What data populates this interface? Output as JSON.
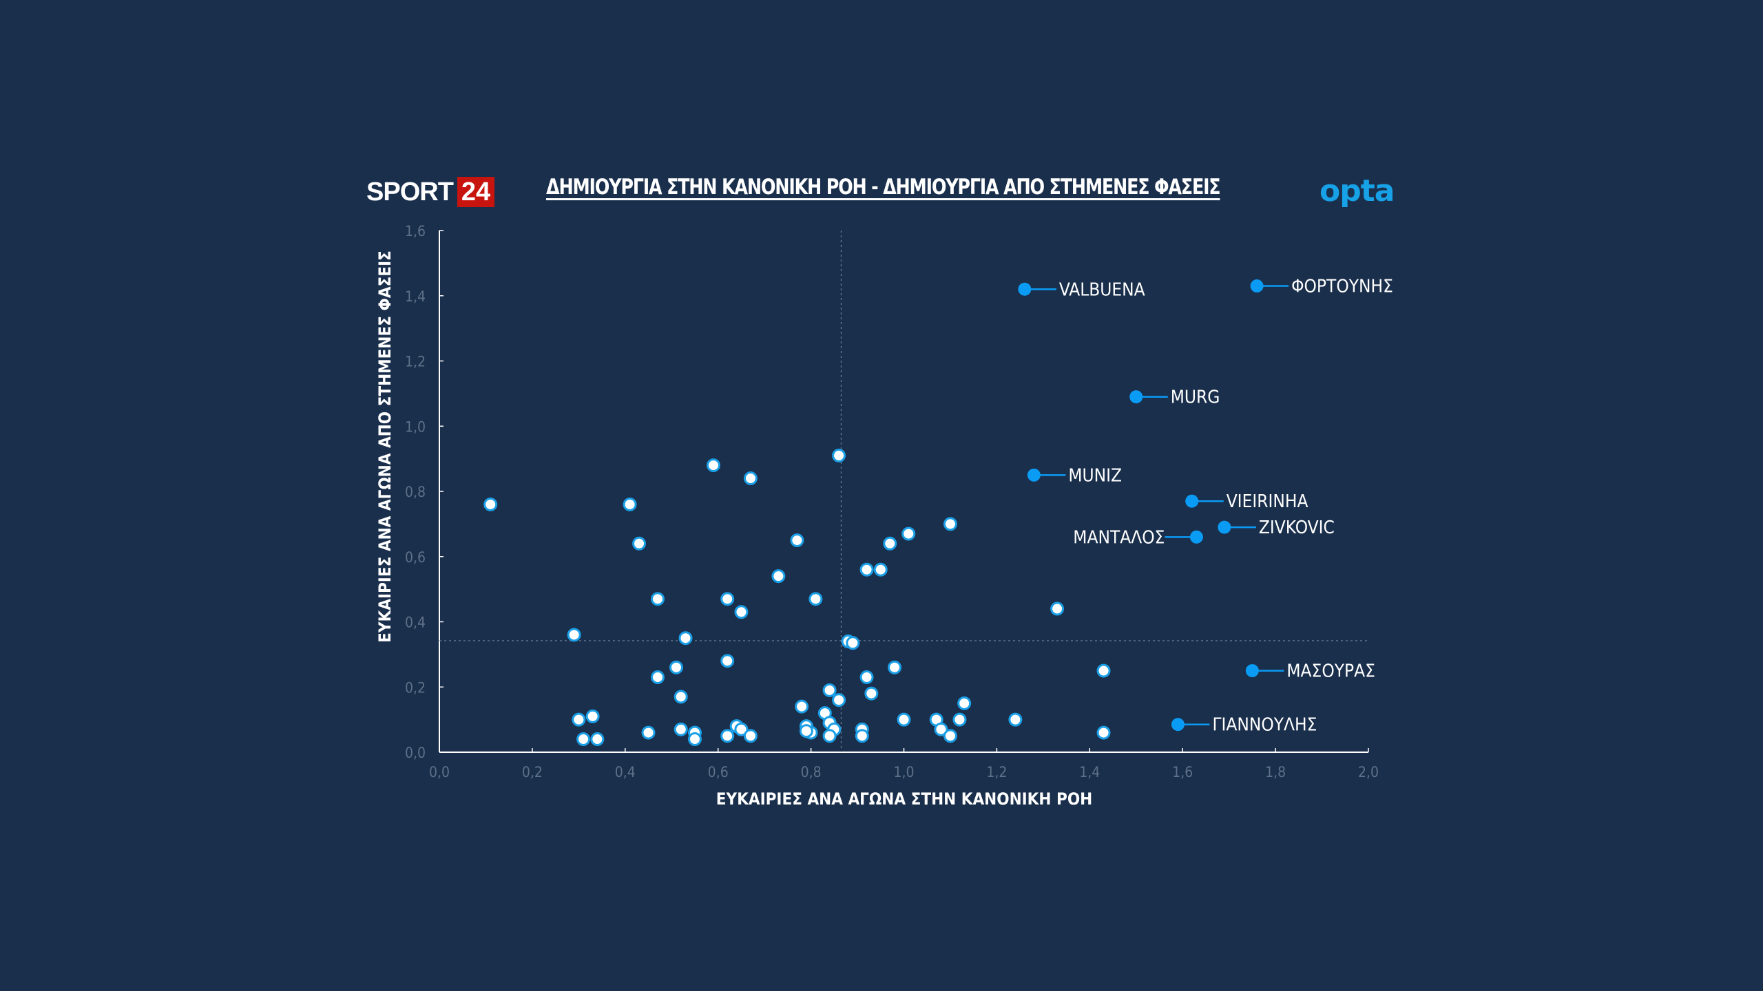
{
  "header": {
    "brand_word": "SPORT",
    "brand_number": "24",
    "title": "ΔΗΜΙΟΥΡΓΙΑ ΣΤΗΝ ΚΑΝΟΝΙΚΗ ΡΟΗ - ΔΗΜΙΟΥΡΓΙΑ ΑΠΟ ΣΤΗΜΕΝΕΣ ΦΑΣΕΙΣ",
    "provider": "opta"
  },
  "colors": {
    "background": "#1a2f4c",
    "highlight_point": "#0a9cf5",
    "point_fill": "#ffffff",
    "point_stroke": "#1a9fe6",
    "brand_red": "#c8140f",
    "opta_blue": "#17a2e8",
    "tick_text": "#5f7089"
  },
  "chart_data": {
    "type": "scatter",
    "title": "ΔΗΜΙΟΥΡΓΙΑ ΣΤΗΝ ΚΑΝΟΝΙΚΗ ΡΟΗ - ΔΗΜΙΟΥΡΓΙΑ ΑΠΟ ΣΤΗΜΕΝΕΣ ΦΑΣΕΙΣ",
    "xlabel": "ΕΥΚΑΙΡΙΕΣ ΑΝΑ ΑΓΩΝΑ ΣΤΗΝ ΚΑΝΟΝΙΚΗ ΡΟΗ",
    "ylabel": "ΕΥΚΑΙΡΙΕΣ ΑΝΑ ΑΓΩΝΑ ΑΠΟ ΣΤΗΜΕΝΕΣ ΦΑΣΕΙΣ",
    "xlim": [
      0,
      2.0
    ],
    "ylim": [
      0,
      1.6
    ],
    "x_ticks": [
      "0,0",
      "0,2",
      "0,4",
      "0,6",
      "0,8",
      "1,0",
      "1,2",
      "1,4",
      "1,6",
      "1,8",
      "2,0"
    ],
    "y_ticks": [
      "0,0",
      "0,2",
      "0,4",
      "0,6",
      "0,8",
      "1,0",
      "1,2",
      "1,4",
      "1,6"
    ],
    "grid": false,
    "reference_lines": {
      "x_mean": 0.865,
      "y_mean": 0.342
    },
    "highlighted": [
      {
        "name": "VALBUENA",
        "x": 1.26,
        "y": 1.42,
        "label_side": "right"
      },
      {
        "name": "ΦΟΡΤΟΥΝΗΣ",
        "x": 1.76,
        "y": 1.43,
        "label_side": "right"
      },
      {
        "name": "MURG",
        "x": 1.5,
        "y": 1.09,
        "label_side": "right"
      },
      {
        "name": "MUNIZ",
        "x": 1.28,
        "y": 0.85,
        "label_side": "right"
      },
      {
        "name": "VIEIRINHA",
        "x": 1.62,
        "y": 0.77,
        "label_side": "right"
      },
      {
        "name": "ZIVKOVIC",
        "x": 1.69,
        "y": 0.69,
        "label_side": "right"
      },
      {
        "name": "ΜΑΝΤΑΛΟΣ",
        "x": 1.63,
        "y": 0.66,
        "label_side": "left"
      },
      {
        "name": "ΜΑΣΟΥΡΑΣ",
        "x": 1.75,
        "y": 0.25,
        "label_side": "right"
      },
      {
        "name": "ΓΙΑΝΝΟΥΛΗΣ",
        "x": 1.59,
        "y": 0.085,
        "label_side": "right"
      }
    ],
    "others": [
      [
        0.11,
        0.76
      ],
      [
        0.41,
        0.76
      ],
      [
        0.43,
        0.64
      ],
      [
        0.47,
        0.47
      ],
      [
        0.29,
        0.36
      ],
      [
        0.47,
        0.23
      ],
      [
        0.51,
        0.26
      ],
      [
        0.52,
        0.17
      ],
      [
        0.53,
        0.35
      ],
      [
        0.3,
        0.1
      ],
      [
        0.33,
        0.11
      ],
      [
        0.31,
        0.04
      ],
      [
        0.34,
        0.04
      ],
      [
        0.45,
        0.06
      ],
      [
        0.52,
        0.07
      ],
      [
        0.55,
        0.06
      ],
      [
        0.55,
        0.04
      ],
      [
        0.59,
        0.88
      ],
      [
        0.62,
        0.47
      ],
      [
        0.62,
        0.28
      ],
      [
        0.65,
        0.43
      ],
      [
        0.67,
        0.84
      ],
      [
        0.64,
        0.08
      ],
      [
        0.65,
        0.07
      ],
      [
        0.67,
        0.05
      ],
      [
        0.62,
        0.05
      ],
      [
        0.73,
        0.54
      ],
      [
        0.77,
        0.65
      ],
      [
        0.81,
        0.47
      ],
      [
        0.86,
        0.91
      ],
      [
        0.88,
        0.34
      ],
      [
        0.89,
        0.335
      ],
      [
        0.92,
        0.56
      ],
      [
        0.95,
        0.56
      ],
      [
        0.97,
        0.64
      ],
      [
        1.01,
        0.67
      ],
      [
        1.1,
        0.7
      ],
      [
        0.98,
        0.26
      ],
      [
        0.92,
        0.23
      ],
      [
        0.93,
        0.18
      ],
      [
        0.84,
        0.19
      ],
      [
        0.86,
        0.16
      ],
      [
        0.83,
        0.12
      ],
      [
        0.78,
        0.14
      ],
      [
        0.84,
        0.09
      ],
      [
        0.85,
        0.07
      ],
      [
        0.79,
        0.08
      ],
      [
        0.8,
        0.06
      ],
      [
        0.79,
        0.065
      ],
      [
        0.84,
        0.05
      ],
      [
        0.91,
        0.07
      ],
      [
        0.91,
        0.05
      ],
      [
        1.0,
        0.1
      ],
      [
        1.07,
        0.1
      ],
      [
        1.08,
        0.07
      ],
      [
        1.1,
        0.05
      ],
      [
        1.13,
        0.15
      ],
      [
        1.12,
        0.1
      ],
      [
        1.24,
        0.1
      ],
      [
        1.33,
        0.44
      ],
      [
        1.43,
        0.25
      ],
      [
        1.43,
        0.06
      ]
    ]
  }
}
